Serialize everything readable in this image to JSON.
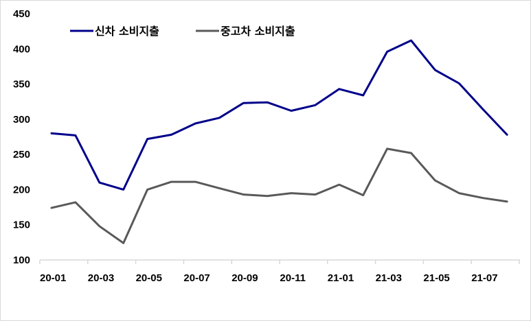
{
  "chart_data": {
    "type": "line",
    "title": "",
    "xlabel": "",
    "ylabel": "",
    "ylim": [
      100,
      450
    ],
    "yticks": [
      100,
      150,
      200,
      250,
      300,
      350,
      400,
      450
    ],
    "x": [
      "20-01",
      "20-02",
      "20-03",
      "20-04",
      "20-05",
      "20-06",
      "20-07",
      "20-08",
      "20-09",
      "20-10",
      "20-11",
      "20-12",
      "21-01",
      "21-02",
      "21-03",
      "21-04",
      "21-05",
      "21-06",
      "21-07",
      "21-08"
    ],
    "xtick_labels": [
      "20-01",
      "20-03",
      "20-05",
      "20-07",
      "20-09",
      "20-11",
      "21-01",
      "21-03",
      "21-05",
      "21-07"
    ],
    "grid": false,
    "legend_position": "top-left",
    "series": [
      {
        "name": "신차 소비지출",
        "color": "#00008B",
        "values": [
          280,
          277,
          210,
          200,
          272,
          278,
          294,
          302,
          323,
          324,
          312,
          320,
          343,
          334,
          396,
          412,
          370,
          351,
          314,
          278
        ]
      },
      {
        "name": "중고차 소비지출",
        "color": "#595959",
        "values": [
          174,
          182,
          148,
          124,
          200,
          211,
          211,
          202,
          193,
          191,
          195,
          193,
          207,
          192,
          258,
          252,
          213,
          195,
          188,
          183
        ]
      }
    ]
  }
}
